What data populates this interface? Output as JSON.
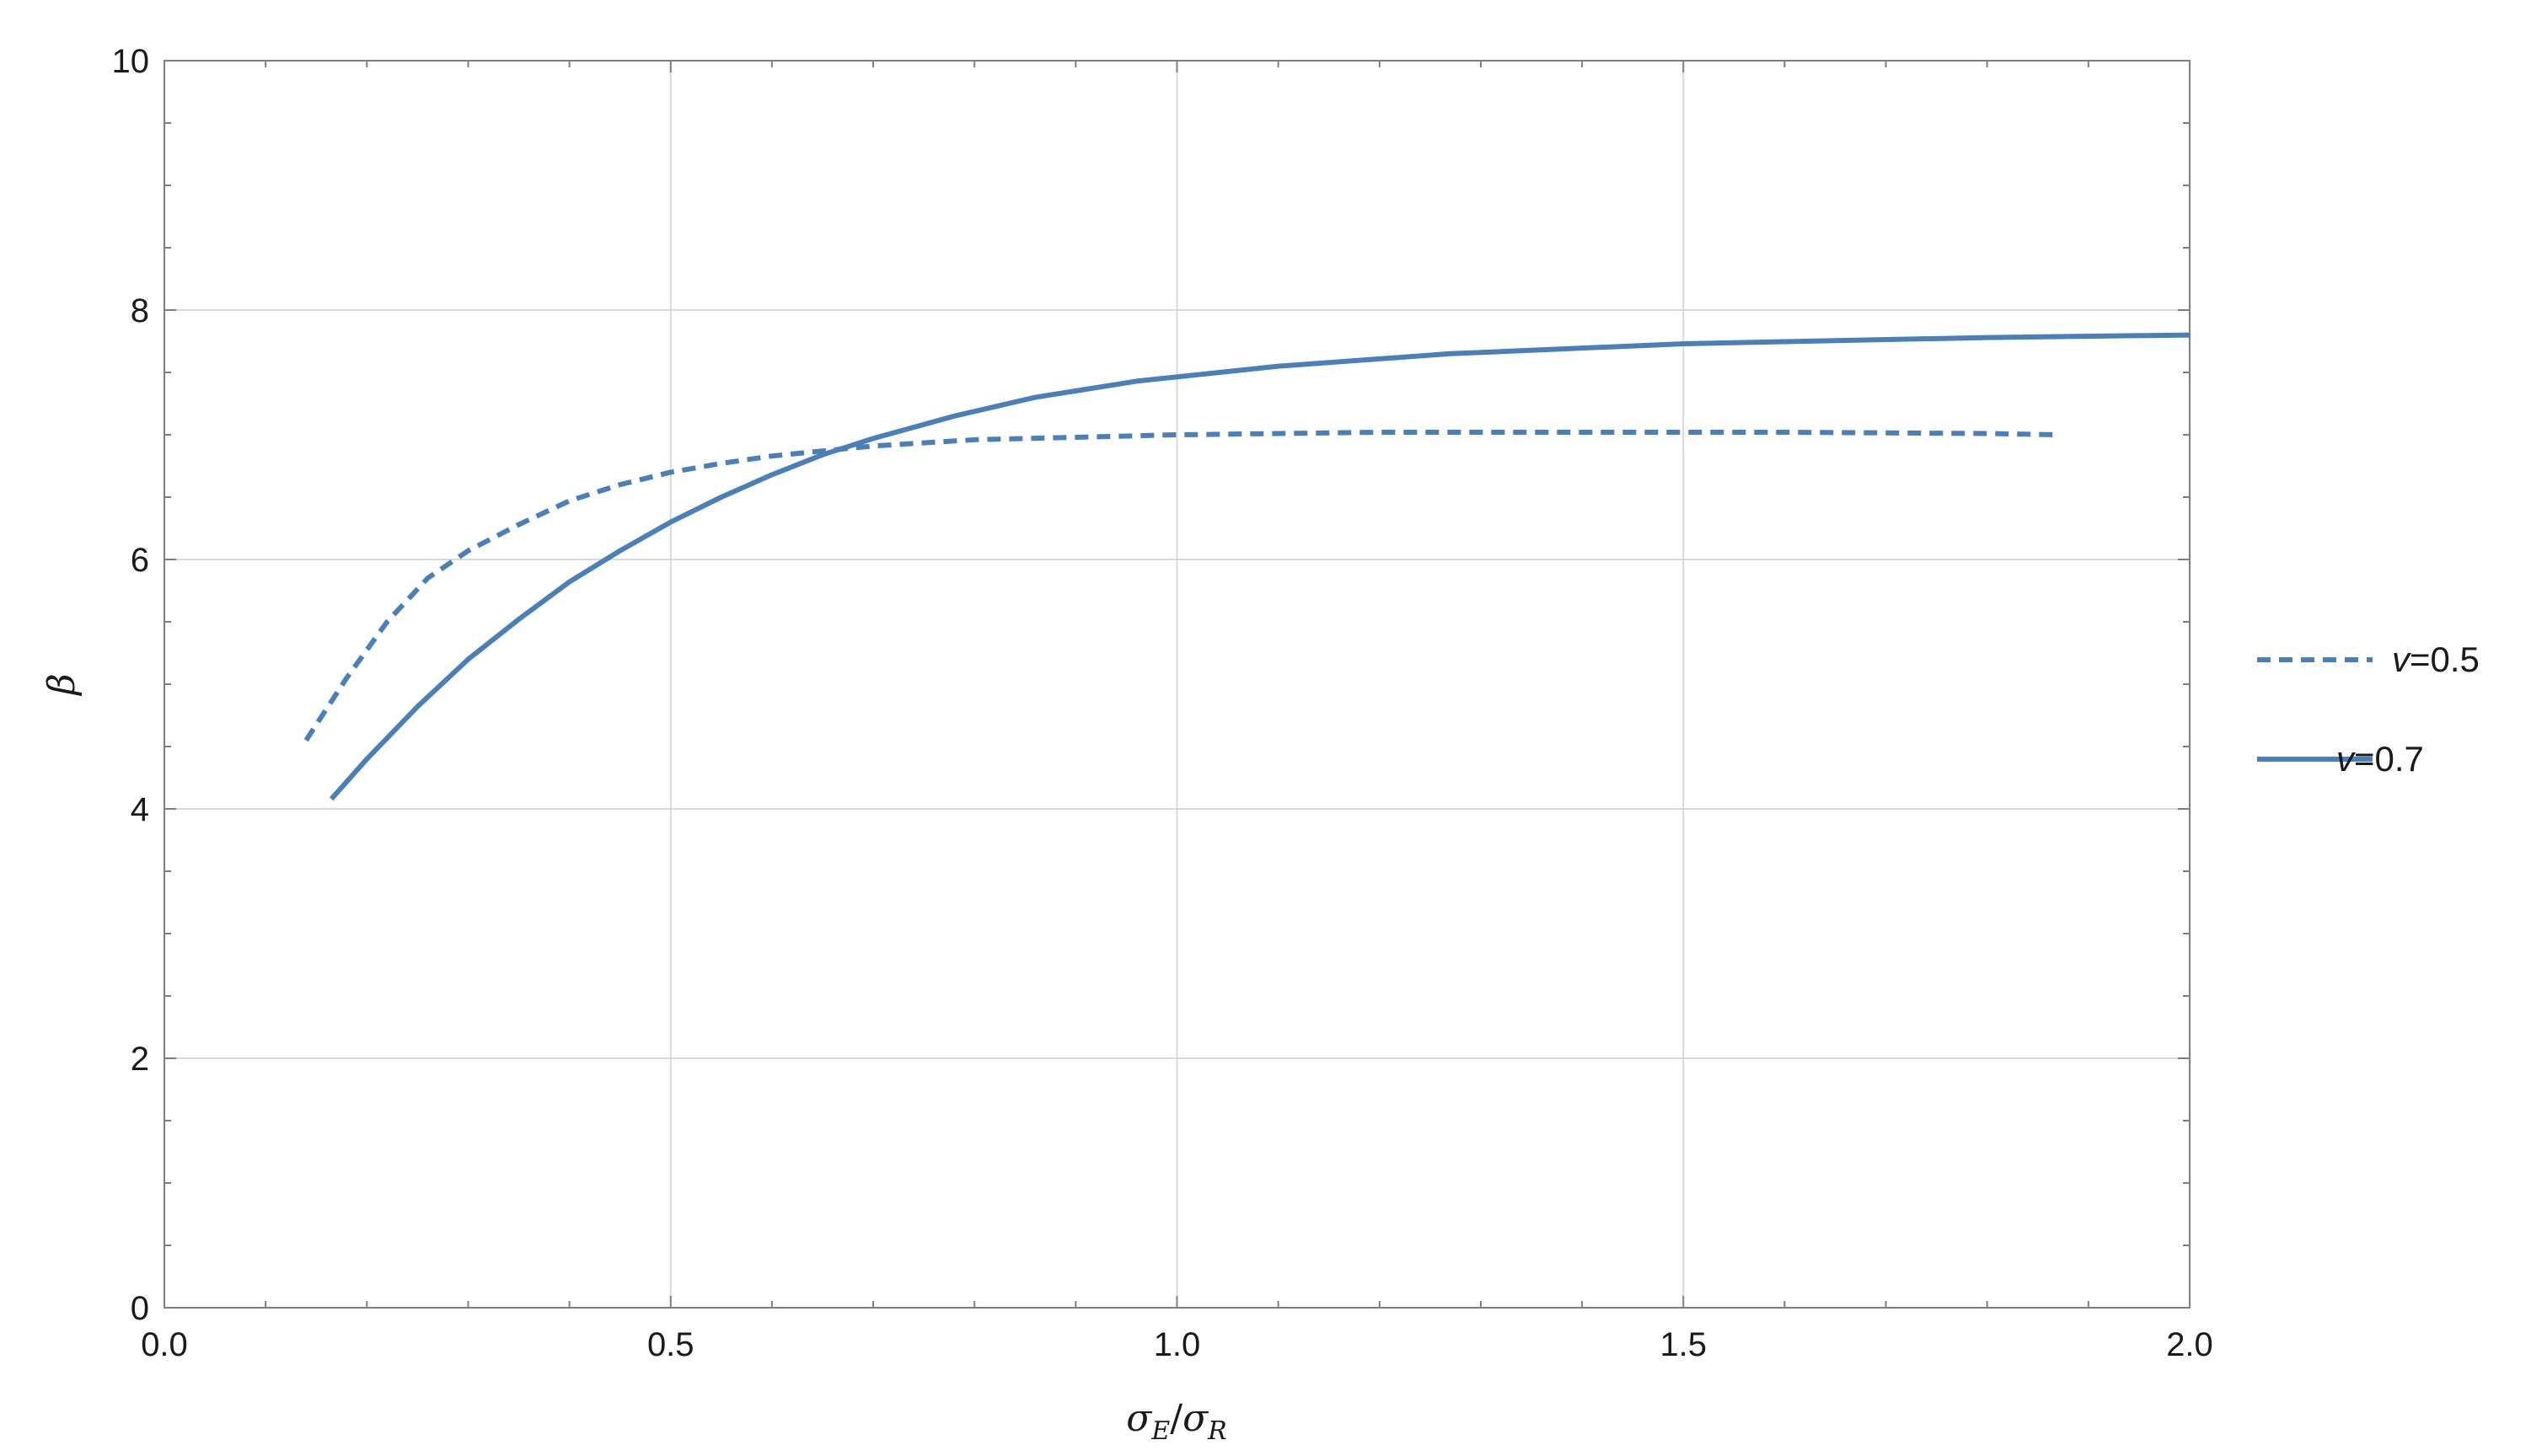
{
  "chart_data": {
    "type": "line",
    "title": "",
    "xlabel": {
      "sigma1": "σ",
      "sub1": "E",
      "slash": "/",
      "sigma2": "σ",
      "sub2": "R"
    },
    "ylabel": "β",
    "xlim": [
      0,
      2
    ],
    "ylim": [
      0,
      10
    ],
    "x_ticks": [
      "0.0",
      "0.5",
      "1.0",
      "1.5",
      "2.0"
    ],
    "y_ticks": [
      "0",
      "2",
      "4",
      "6",
      "8",
      "10"
    ],
    "grid": true,
    "legend_position": "right",
    "series": [
      {
        "name": {
          "var": "v",
          "rest": "=0.5"
        },
        "style": "dashed",
        "color": "#4a7fb8",
        "points": [
          [
            0.14,
            4.55
          ],
          [
            0.18,
            5.05
          ],
          [
            0.22,
            5.5
          ],
          [
            0.26,
            5.85
          ],
          [
            0.3,
            6.07
          ],
          [
            0.35,
            6.28
          ],
          [
            0.4,
            6.47
          ],
          [
            0.45,
            6.6
          ],
          [
            0.5,
            6.7
          ],
          [
            0.55,
            6.77
          ],
          [
            0.6,
            6.83
          ],
          [
            0.65,
            6.87
          ],
          [
            0.7,
            6.91
          ],
          [
            0.8,
            6.96
          ],
          [
            0.9,
            6.98
          ],
          [
            1.0,
            7.0
          ],
          [
            1.2,
            7.02
          ],
          [
            1.4,
            7.02
          ],
          [
            1.6,
            7.02
          ],
          [
            1.8,
            7.01
          ],
          [
            1.87,
            7.0
          ]
        ]
      },
      {
        "name": {
          "var": "v",
          "rest": "=0.7"
        },
        "style": "solid",
        "color": "#4a7fb8",
        "points": [
          [
            0.165,
            4.08
          ],
          [
            0.2,
            4.4
          ],
          [
            0.25,
            4.82
          ],
          [
            0.3,
            5.2
          ],
          [
            0.35,
            5.52
          ],
          [
            0.4,
            5.82
          ],
          [
            0.45,
            6.07
          ],
          [
            0.5,
            6.3
          ],
          [
            0.55,
            6.5
          ],
          [
            0.6,
            6.68
          ],
          [
            0.65,
            6.84
          ],
          [
            0.7,
            6.97
          ],
          [
            0.78,
            7.15
          ],
          [
            0.86,
            7.3
          ],
          [
            0.96,
            7.43
          ],
          [
            1.1,
            7.55
          ],
          [
            1.27,
            7.65
          ],
          [
            1.5,
            7.73
          ],
          [
            1.8,
            7.78
          ],
          [
            2.0,
            7.8
          ]
        ]
      }
    ]
  }
}
